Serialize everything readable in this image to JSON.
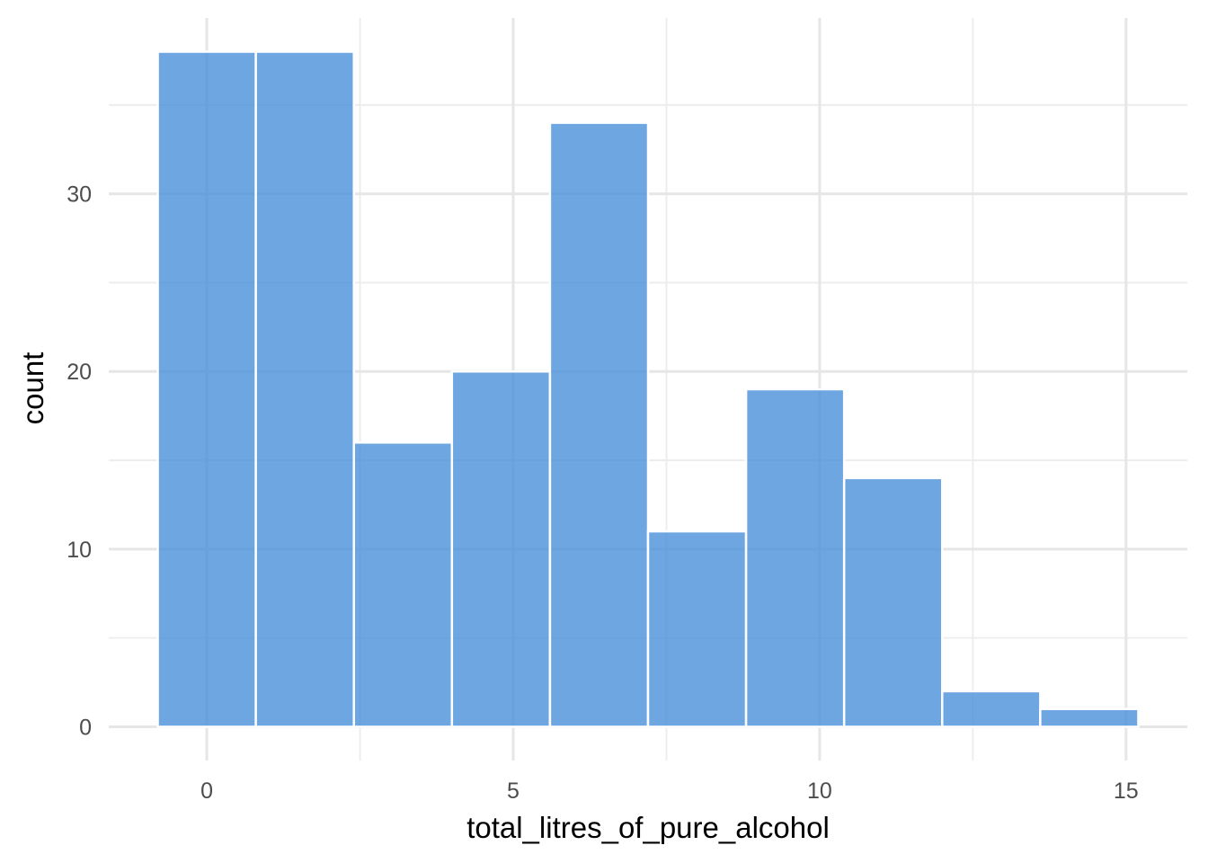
{
  "chart_data": {
    "type": "bar",
    "subtype": "histogram",
    "xlabel": "total_litres_of_pure_alcohol",
    "ylabel": "count",
    "bin_width": 1.6,
    "bins": [
      {
        "x0": -0.8,
        "x1": 0.8,
        "count": 38
      },
      {
        "x0": 0.8,
        "x1": 2.4,
        "count": 38
      },
      {
        "x0": 2.4,
        "x1": 4.0,
        "count": 16
      },
      {
        "x0": 4.0,
        "x1": 5.6,
        "count": 20
      },
      {
        "x0": 5.6,
        "x1": 7.2,
        "count": 34
      },
      {
        "x0": 7.2,
        "x1": 8.8,
        "count": 11
      },
      {
        "x0": 8.8,
        "x1": 10.4,
        "count": 19
      },
      {
        "x0": 10.4,
        "x1": 12.0,
        "count": 14
      },
      {
        "x0": 12.0,
        "x1": 13.6,
        "count": 2
      },
      {
        "x0": 13.6,
        "x1": 15.2,
        "count": 1
      }
    ],
    "xlim": [
      -1.6,
      16.0
    ],
    "ylim": [
      -1.9,
      39.9
    ],
    "x_ticks": [
      0,
      5,
      10,
      15
    ],
    "x_tick_labels": [
      "0",
      "5",
      "10",
      "15"
    ],
    "x_minor_ticks": [
      2.5,
      7.5,
      12.5
    ],
    "y_ticks": [
      0,
      10,
      20,
      30
    ],
    "y_tick_labels": [
      "0",
      "10",
      "20",
      "30"
    ],
    "y_minor_ticks": [
      5,
      15,
      25,
      35
    ],
    "bar_color": "#4A90D9",
    "bar_opacity": 0.8,
    "grid": true,
    "legend": "none"
  }
}
